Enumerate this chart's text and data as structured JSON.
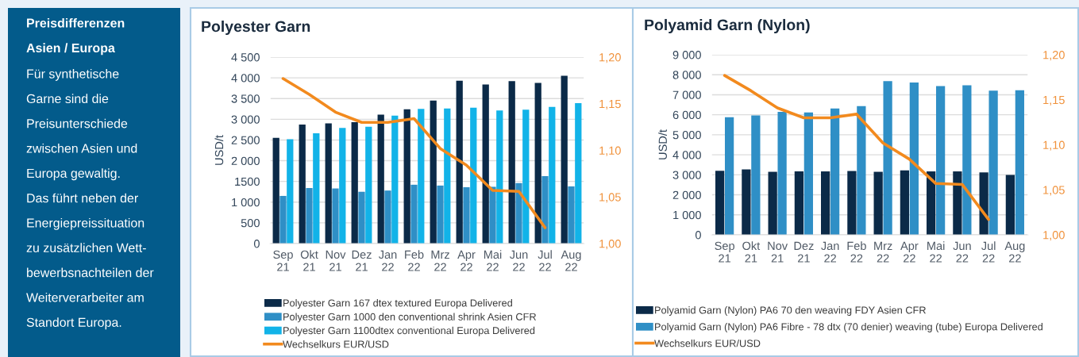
{
  "chart_data": [
    {
      "type": "other",
      "title": "Preisdifferenzen\nAsien / Europa",
      "annotations": [
        "Für synthetische\nGarne sind die\nPreisunterschiede\nzwischen Asien und\nEuropa gewaltig.\nDas führt neben der\nEnergiepreissituation\nzu zusätzlichen Wett-\nbewerbsnachteilen der\nWeiterverarbeiter am\nStandort Europa."
      ]
    },
    {
      "type": "bar",
      "title": "Polyester Garn",
      "ylabel": "USD/t",
      "categories": [
        "Sep\n21",
        "Okt\n21",
        "Nov\n21",
        "Dez\n21",
        "Jan\n22",
        "Feb\n22",
        "Mrz\n22",
        "Apr\n22",
        "Mai\n22",
        "Jun\n22",
        "Jul\n22",
        "Aug\n22"
      ],
      "series": [
        {
          "name": "Polyester Garn 167 dtex textured Europa Delivered",
          "color": "#0b2a48",
          "values": [
            2550,
            2870,
            2900,
            2930,
            3110,
            3240,
            3450,
            3930,
            3840,
            3920,
            3880,
            4050
          ]
        },
        {
          "name": "Polyester Garn 1000 den conventional shrink Asien CFR",
          "color": "#2f8fc6",
          "values": [
            1150,
            1340,
            1330,
            1250,
            1280,
            1420,
            1400,
            1360,
            1370,
            1460,
            1630,
            1380
          ]
        },
        {
          "name": "Polyester Garn 1100dtex conventional Europa Delivered",
          "color": "#12b3e8",
          "values": [
            2520,
            2660,
            2790,
            2820,
            3090,
            3250,
            3260,
            3280,
            3210,
            3230,
            3300,
            3390
          ]
        },
        {
          "name": "Wechselkurs EUR/USD",
          "type": "line",
          "axis": "y2",
          "color": "#f28a1e",
          "values": [
            1.177,
            1.16,
            1.141,
            1.13,
            1.13,
            1.134,
            1.102,
            1.084,
            1.057,
            1.056,
            1.017,
            null
          ]
        }
      ],
      "ylim": [
        0,
        4500
      ],
      "yticks": [
        0,
        500,
        {
          "value": 1000,
          "label": "1 000"
        },
        1500,
        {
          "value": 2000,
          "label": "2 000"
        },
        {
          "value": 2500,
          "label": "2 500"
        },
        {
          "value": 3000,
          "label": "3 000"
        },
        {
          "value": 3500,
          "label": "3 500"
        },
        {
          "value": 4000,
          "label": "4 000"
        },
        {
          "value": 4500,
          "label": "4 500"
        }
      ],
      "y2lim": [
        1.0,
        1.2
      ],
      "y2ticks": [
        {
          "value": 1.0,
          "label": "1,00"
        },
        {
          "value": 1.05,
          "label": "1,05"
        },
        {
          "value": 1.1,
          "label": "1,10"
        },
        {
          "value": 1.15,
          "label": "1,15"
        },
        {
          "value": 1.2,
          "label": "1,20"
        }
      ],
      "grid": "y",
      "legend": "bottom"
    },
    {
      "type": "bar",
      "title": "Polyamid Garn (Nylon)",
      "ylabel": "USD/t",
      "categories": [
        "Sep\n21",
        "Okt\n21",
        "Nov\n21",
        "Dez\n21",
        "Jan\n22",
        "Feb\n22",
        "Mrz\n22",
        "Apr\n22",
        "Mai\n22",
        "Jun\n22",
        "Jul\n22",
        "Aug\n22"
      ],
      "series": [
        {
          "name": "Polyamid Garn (Nylon) PA6 70 den weaving FDY Asien CFR",
          "color": "#0b2a48",
          "values": [
            3200,
            3270,
            3150,
            3170,
            3170,
            3190,
            3150,
            3220,
            3170,
            3170,
            3120,
            2990
          ]
        },
        {
          "name": "Polyamid Garn (Nylon) PA6 Fibre - 78 dtx (70 denier) weaving (tube) Europa Delivered",
          "color": "#2f8fc6",
          "values": [
            5880,
            5970,
            6150,
            6120,
            6310,
            6430,
            7680,
            7610,
            7430,
            7470,
            7210,
            7230
          ]
        },
        {
          "name": "Wechselkurs EUR/USD",
          "type": "line",
          "axis": "y2",
          "color": "#f28a1e",
          "values": [
            1.177,
            1.16,
            1.141,
            1.13,
            1.13,
            1.134,
            1.102,
            1.084,
            1.057,
            1.056,
            1.017,
            null
          ]
        }
      ],
      "ylim": [
        0,
        9000
      ],
      "yticks": [
        0,
        {
          "value": 1000,
          "label": "1 000"
        },
        {
          "value": 2000,
          "label": "2 000"
        },
        {
          "value": 3000,
          "label": "3 000"
        },
        {
          "value": 4000,
          "label": "4 000"
        },
        {
          "value": 5000,
          "label": "5 000"
        },
        {
          "value": 6000,
          "label": "6 000"
        },
        {
          "value": 7000,
          "label": "7 000"
        },
        {
          "value": 8000,
          "label": "8 000"
        },
        {
          "value": 9000,
          "label": "9 000"
        }
      ],
      "y2lim": [
        1.0,
        1.2
      ],
      "y2ticks": [
        {
          "value": 1.0,
          "label": "1,00"
        },
        {
          "value": 1.05,
          "label": "1,05"
        },
        {
          "value": 1.1,
          "label": "1,10"
        },
        {
          "value": 1.15,
          "label": "1,15"
        },
        {
          "value": 1.2,
          "label": "1,20"
        }
      ],
      "grid": "y",
      "legend": "bottom"
    }
  ]
}
